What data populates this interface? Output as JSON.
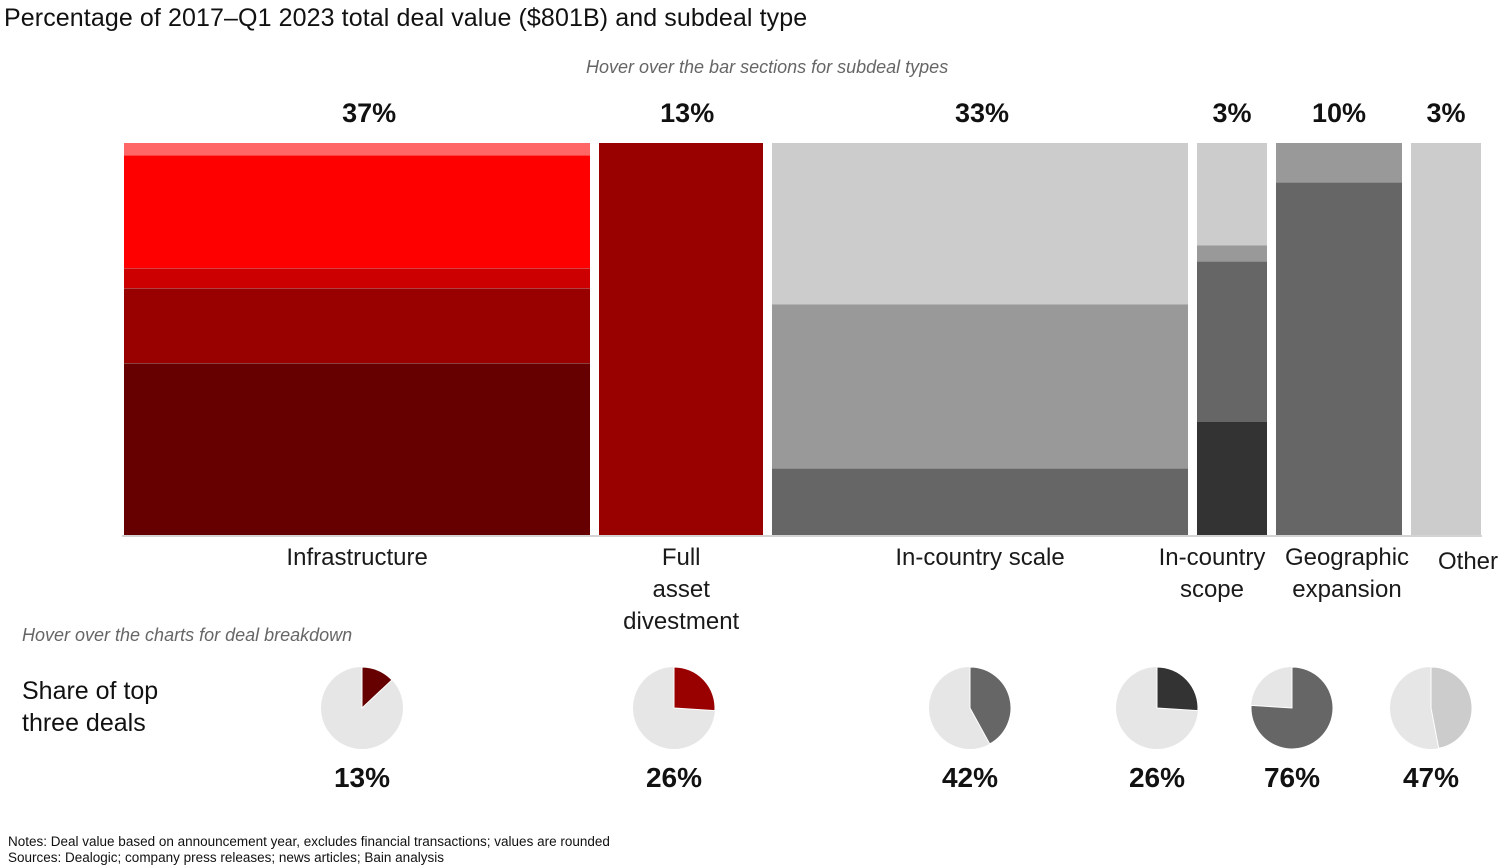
{
  "title": "Percentage of 2017–Q1 2023 total deal value ($801B) and subdeal type",
  "bar_hint": "Hover over the bar sections for subdeal types",
  "pie_hint": "Hover over the charts for deal breakdown",
  "pie_row_label": "Share of top\nthree deals",
  "notes": "Notes: Deal value based on announcement year, excludes financial transactions; values are rounded",
  "sources": "Sources: Dealogic; company press releases; news articles; Bain analysis",
  "chart_data": [
    {
      "type": "bar",
      "subtype": "marimekko",
      "title": "Percentage of 2017–Q1 2023 total deal value ($801B) and subdeal type",
      "xlabel": "",
      "ylabel": "",
      "ylim": [
        0,
        100
      ],
      "grid": false,
      "categories": [
        "Infrastructure",
        "Full\nasset\ndivestment",
        "In-country scale",
        "In-country\nscope",
        "Geographic\nexpansion",
        "Other"
      ],
      "widths_pct": [
        37,
        13,
        33,
        3,
        10,
        3
      ],
      "width_labels": [
        "37%",
        "13%",
        "33%",
        "3%",
        "10%",
        "3%"
      ],
      "stacks": [
        {
          "name": "Infrastructure",
          "segments": [
            {
              "value": 3,
              "color": "#ff6666"
            },
            {
              "value": 29,
              "color": "#ff0000"
            },
            {
              "value": 5,
              "color": "#cc0000"
            },
            {
              "value": 19,
              "color": "#990000"
            },
            {
              "value": 44,
              "color": "#660000"
            }
          ]
        },
        {
          "name": "Full asset divestment",
          "segments": [
            {
              "value": 100,
              "color": "#990000"
            }
          ]
        },
        {
          "name": "In-country scale",
          "segments": [
            {
              "value": 41,
              "color": "#cccccc"
            },
            {
              "value": 42,
              "color": "#999999"
            },
            {
              "value": 17,
              "color": "#666666"
            }
          ]
        },
        {
          "name": "In-country scope",
          "segments": [
            {
              "value": 26,
              "color": "#cccccc"
            },
            {
              "value": 4,
              "color": "#999999"
            },
            {
              "value": 41,
              "color": "#666666"
            },
            {
              "value": 29,
              "color": "#333333"
            }
          ]
        },
        {
          "name": "Geographic expansion",
          "segments": [
            {
              "value": 10,
              "color": "#999999"
            },
            {
              "value": 90,
              "color": "#666666"
            }
          ]
        },
        {
          "name": "Other",
          "segments": [
            {
              "value": 100,
              "color": "#cccccc"
            }
          ]
        }
      ]
    },
    {
      "type": "pie",
      "title": "Share of top three deals",
      "categories": [
        "Infrastructure",
        "Full asset divestment",
        "In-country scale",
        "In-country scope",
        "Geographic expansion",
        "Other"
      ],
      "values": [
        13,
        26,
        42,
        26,
        76,
        47
      ],
      "labels": [
        "13%",
        "26%",
        "42%",
        "26%",
        "76%",
        "47%"
      ],
      "colors": [
        "#660000",
        "#990000",
        "#666666",
        "#333333",
        "#666666",
        "#cccccc"
      ],
      "remainder_color": "#e6e6e6"
    }
  ]
}
